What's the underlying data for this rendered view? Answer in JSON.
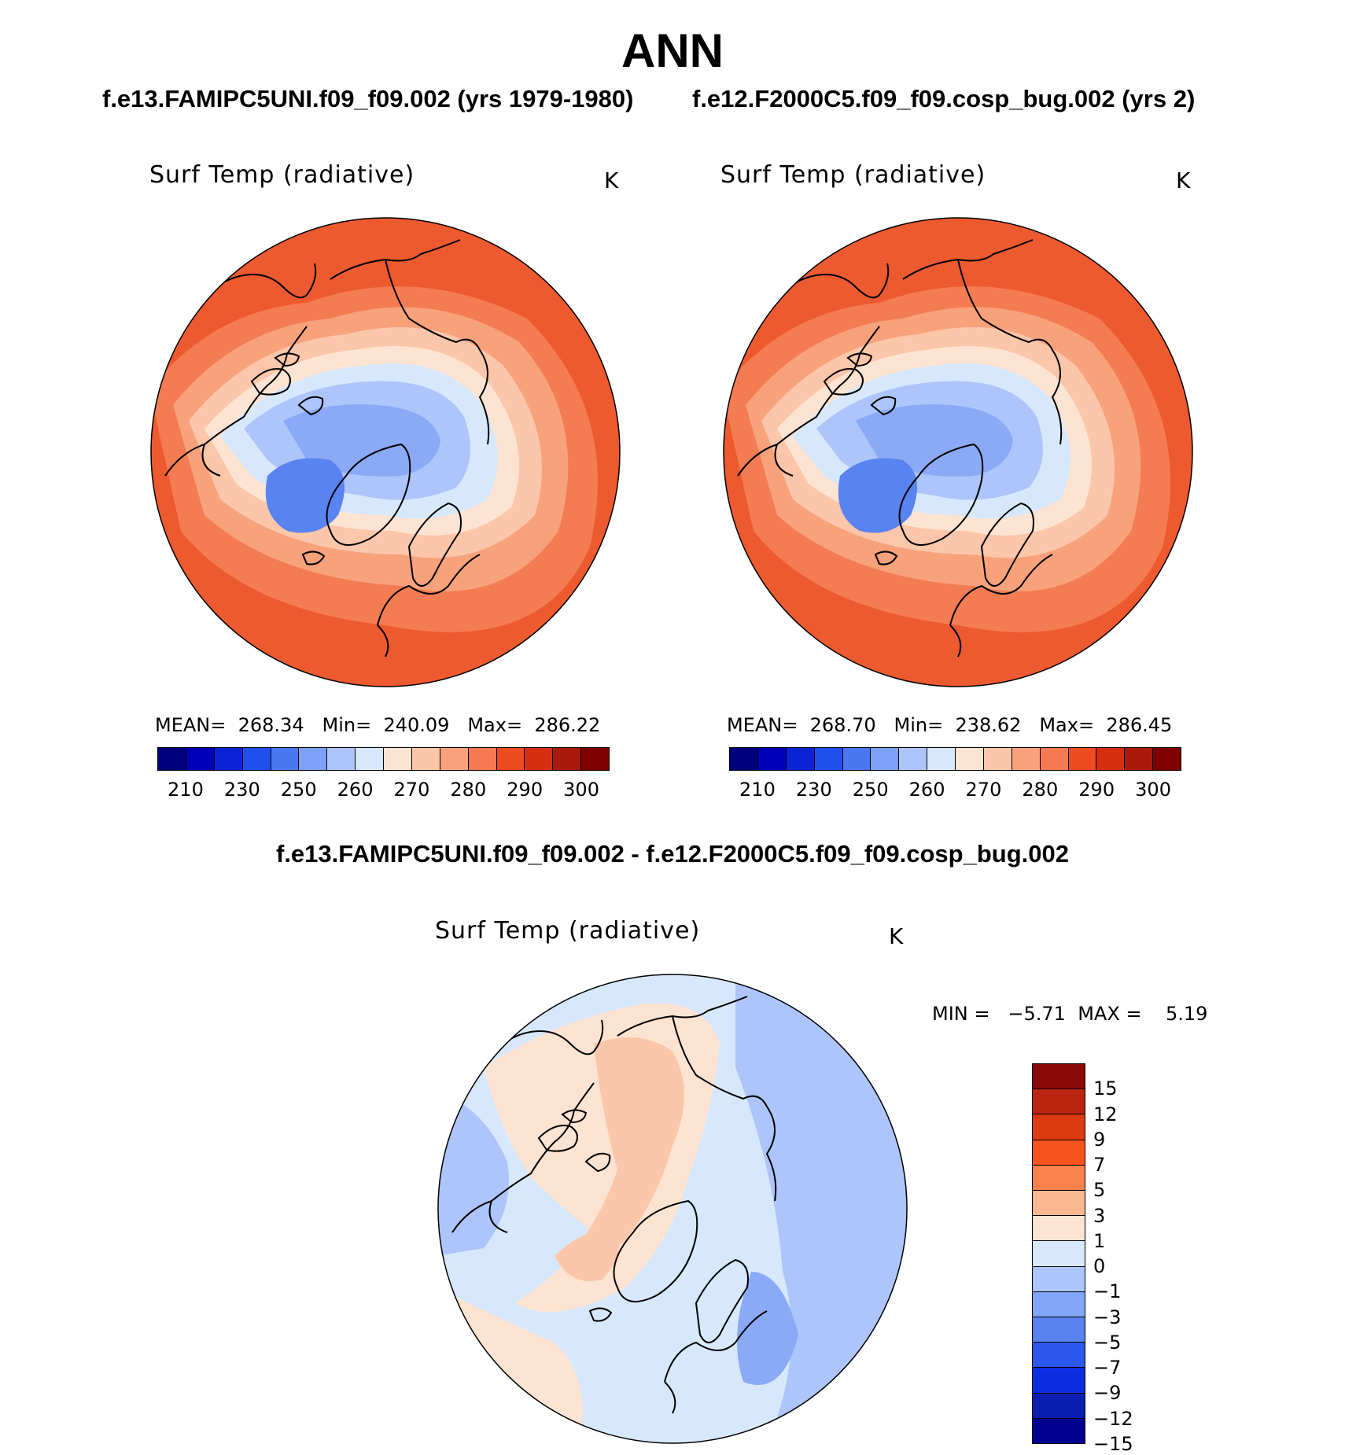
{
  "title": "ANN",
  "subtitles": {
    "left": "f.e13.FAMIPC5UNI.f09_f09.002 (yrs 1979-1980)",
    "right": "f.e12.F2000C5.f09_f09.cosp_bug.002 (yrs 2)"
  },
  "panels": [
    {
      "variable": "Surf Temp (radiative)",
      "units": "K",
      "stats": {
        "mean_label": "MEAN=",
        "mean": "268.34",
        "min_label": "Min=",
        "min": "240.09",
        "max_label": "Max=",
        "max": "286.22"
      }
    },
    {
      "variable": "Surf Temp (radiative)",
      "units": "K",
      "stats": {
        "mean_label": "MEAN=",
        "mean": "268.70",
        "min_label": "Min=",
        "min": "238.62",
        "max_label": "Max=",
        "max": "286.45"
      }
    }
  ],
  "diff_panel": {
    "title": "f.e13.FAMIPC5UNI.f09_f09.002 - f.e12.F2000C5.f09_f09.cosp_bug.002",
    "variable": "Surf Temp (radiative)",
    "units": "K",
    "stats": {
      "min_label": "MIN =",
      "min": "−5.71",
      "max_label": "MAX =",
      "max": "5.19"
    }
  },
  "abs_colorbar": {
    "colors": [
      "#00007f",
      "#0000b8",
      "#0b24d8",
      "#1f4fec",
      "#4a78f4",
      "#7da0f8",
      "#aec5fb",
      "#d8e8fc",
      "#fde4d2",
      "#fcc6aa",
      "#f9a27c",
      "#f57a50",
      "#ee4b22",
      "#d62e10",
      "#a91a0a",
      "#7e0000"
    ],
    "tick_labels": [
      "210",
      "230",
      "250",
      "260",
      "270",
      "280",
      "290",
      "300"
    ]
  },
  "diff_colorbar": {
    "colors": [
      "#8a0a0a",
      "#ba2410",
      "#dc3a10",
      "#f6531e",
      "#f8824c",
      "#f9b890",
      "#fde4d2",
      "#d8e8fc",
      "#aec5fb",
      "#82a6f7",
      "#5a83f2",
      "#2c58ee",
      "#0b2de0",
      "#0a1fb0",
      "#000090"
    ],
    "tick_labels": [
      "15",
      "12",
      "9",
      "7",
      "5",
      "3",
      "1",
      "0",
      "−1",
      "−3",
      "−5",
      "−7",
      "−9",
      "−12",
      "−15"
    ]
  },
  "map_colors": {
    "deep_warm": "#ee5a2f",
    "warm": "#f47c52",
    "mid_warm": "#f8a27c",
    "light_warm": "#fcc6aa",
    "pale_warm": "#fde4d2",
    "pale_cool": "#d8e8fc",
    "light_cool": "#aec5fb",
    "cool": "#8aaaf7",
    "deep_cool": "#5a83f2",
    "coast": "#000000"
  }
}
